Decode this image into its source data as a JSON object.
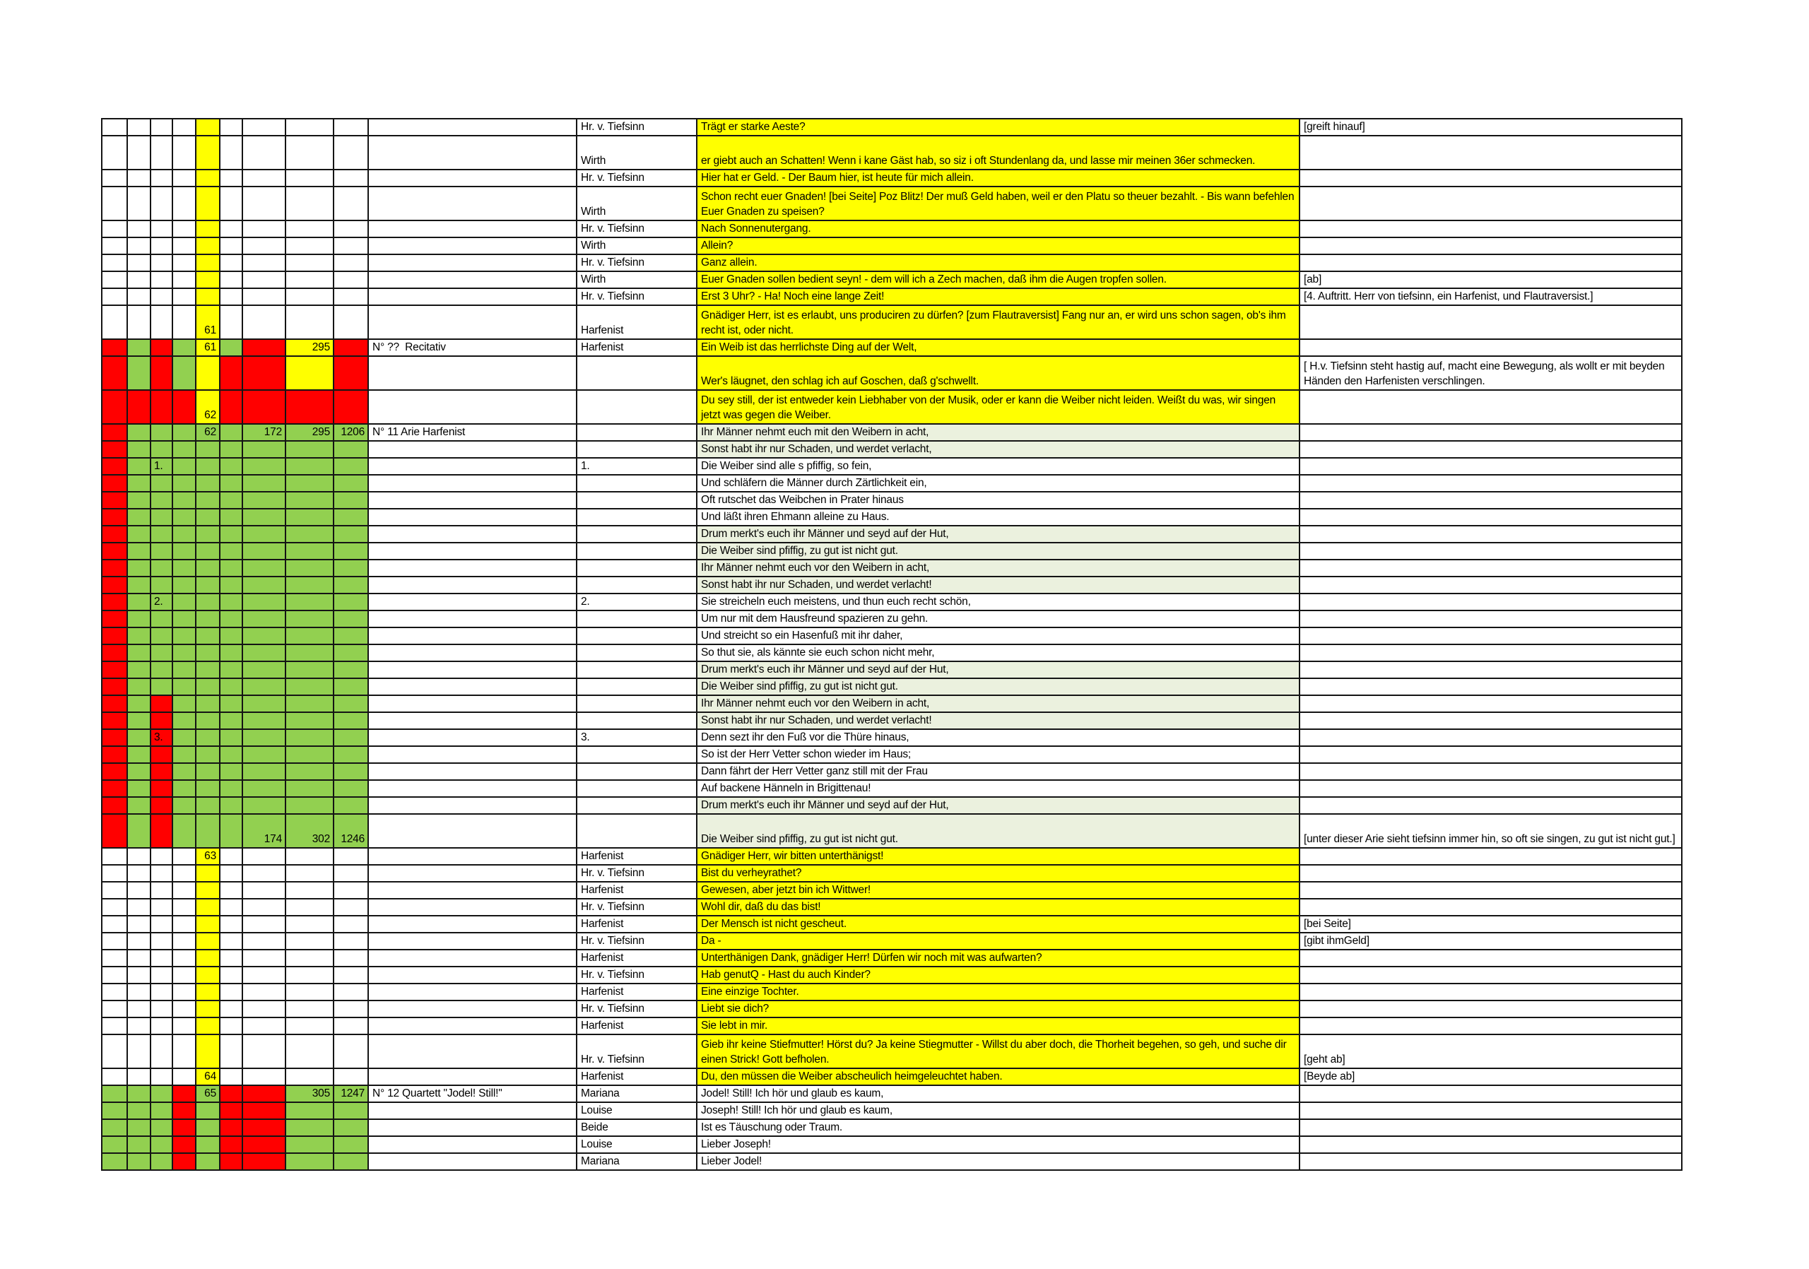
{
  "palette": {
    "yellow": "#ffff00",
    "red": "#ff0000",
    "green": "#92d050",
    "pale_green": "#ebf1de",
    "white": "#ffffff",
    "grid_line": "#141414"
  },
  "table": {
    "rows": [
      {
        "h": 1,
        "left": "wwwwywwww",
        "marks": {},
        "title": "",
        "speaker": "Hr. v. Tiefsinn",
        "text": "Trägt er starke Aeste?",
        "bg": "y",
        "stage": "[greift hinauf]"
      },
      {
        "h": 2,
        "left": "wwwwywwww",
        "marks": {},
        "title": "",
        "speaker": "Wirth",
        "text": "er giebt auch an Schatten! Wenn i kane Gäst hab, so siz i oft Stundenlang da, und lasse mir meinen 36er schmecken.",
        "bg": "y",
        "stage": ""
      },
      {
        "h": 1,
        "left": "wwwwywwww",
        "marks": {},
        "title": "",
        "speaker": "Hr. v. Tiefsinn",
        "text": "Hier hat er Geld. - Der Baum hier, ist heute für mich allein.",
        "bg": "y",
        "stage": ""
      },
      {
        "h": 2,
        "left": "wwwwywwww",
        "marks": {},
        "title": "",
        "speaker": "Wirth",
        "text": "Schon recht euer Gnaden! [bei Seite] Poz Blitz! Der muß Geld haben, weil er den Platu so theuer bezahlt. - Bis wann befehlen Euer Gnaden zu speisen?",
        "bg": "y",
        "stage": ""
      },
      {
        "h": 1,
        "left": "wwwwywwww",
        "marks": {},
        "title": "",
        "speaker": "Hr. v. Tiefsinn",
        "text": "Nach Sonnenutergang.",
        "bg": "y",
        "stage": ""
      },
      {
        "h": 1,
        "left": "wwwwywwww",
        "marks": {},
        "title": "",
        "speaker": "Wirth",
        "text": "Allein?",
        "bg": "y",
        "stage": ""
      },
      {
        "h": 1,
        "left": "wwwwywwww",
        "marks": {},
        "title": "",
        "speaker": "Hr. v. Tiefsinn",
        "text": "Ganz allein.",
        "bg": "y",
        "stage": ""
      },
      {
        "h": 1,
        "left": "wwwwywwww",
        "marks": {},
        "title": "",
        "speaker": "Wirth",
        "text": "Euer Gnaden sollen bedient seyn! - dem will ich a Zech machen, daß ihm die Augen tropfen sollen.",
        "bg": "y",
        "stage": "[ab]"
      },
      {
        "h": 1,
        "left": "wwwwywwww",
        "marks": {},
        "title": "",
        "speaker": "Hr. v. Tiefsinn",
        "text": "Erst 3 Uhr? - Ha! Noch eine lange Zeit!",
        "bg": "y",
        "stage": "[4. Auftritt. Herr von tiefsinn, ein Harfenist, und Flautraversist.]"
      },
      {
        "h": 2,
        "left": "wwwwywwww",
        "marks": {
          "4": "61"
        },
        "title": "",
        "speaker": "Harfenist",
        "text": "Gnädiger Herr, ist es erlaubt, uns produciren zu dürfen? [zum Flautraversist] Fang nur an, er wird uns schon sagen, ob's ihm recht ist, oder nicht.",
        "bg": "y",
        "stage": ""
      },
      {
        "h": 1,
        "left": "rgrgygryr",
        "marks": {
          "4": "61",
          "7": "295"
        },
        "title": "N° ??  Recitativ",
        "speaker": "Harfenist",
        "text": "Ein Weib ist das herrlichste Ding auf der Welt,",
        "bg": "y",
        "stage": ""
      },
      {
        "h": 2,
        "left": "rgrgyrryr",
        "marks": {},
        "title": "",
        "speaker": "",
        "text": "Wer's läugnet, den schlag ich auf Goschen, daß g'schwellt.",
        "bg": "y",
        "stage": "[ H.v. Tiefsinn steht hastig auf, macht eine Bewegung, als wollt er mit beyden Händen den Harfenisten verschlingen."
      },
      {
        "h": 2,
        "left": "rrrryrrrr",
        "marks": {
          "4": "62"
        },
        "title": "",
        "speaker": "",
        "text": "Du sey still, der ist entweder kein Liebhaber von der Musik, oder er kann die Weiber nicht leiden. Weißt du was, wir singen jetzt was gegen die Weiber.",
        "bg": "y",
        "stage": ""
      },
      {
        "h": 1,
        "left": "rgggggggg",
        "marks": {
          "4": "62",
          "6": "172",
          "7": "295",
          "8": "1206"
        },
        "title": "N° 11 Arie Harfenist",
        "speaker": "",
        "text": "Ihr Männer nehmt euch mit den Weibern in acht,",
        "bg": "p",
        "stage": ""
      },
      {
        "h": 1,
        "left": "rgggggggg",
        "marks": {},
        "title": "",
        "speaker": "",
        "text": "Sonst habt ihr nur Schaden, und werdet verlacht,",
        "bg": "p",
        "stage": ""
      },
      {
        "h": 1,
        "left": "rgggggggg",
        "marks": {
          "2": "1."
        },
        "title": "",
        "speaker": "1.",
        "text": "Die Weiber sind alle s pfiffig, so fein,",
        "bg": "w",
        "stage": ""
      },
      {
        "h": 1,
        "left": "rgggggggg",
        "marks": {},
        "title": "",
        "speaker": "",
        "text": "Und schläfern die Männer durch Zärtlichkeit ein,",
        "bg": "w",
        "stage": ""
      },
      {
        "h": 1,
        "left": "rgggggggg",
        "marks": {},
        "title": "",
        "speaker": "",
        "text": "Oft rutschet das Weibchen in Prater hinaus",
        "bg": "w",
        "stage": ""
      },
      {
        "h": 1,
        "left": "rgggggggg",
        "marks": {},
        "title": "",
        "speaker": "",
        "text": "Und läßt ihren Ehmann alleine zu Haus.",
        "bg": "w",
        "stage": ""
      },
      {
        "h": 1,
        "left": "rgggggggg",
        "marks": {},
        "title": "",
        "speaker": "",
        "text": "Drum merkt's euch ihr Männer und seyd auf der Hut,",
        "bg": "p",
        "stage": ""
      },
      {
        "h": 1,
        "left": "rgggggggg",
        "marks": {},
        "title": "",
        "speaker": "",
        "text": "Die Weiber sind pfiffig, zu gut ist nicht gut.",
        "bg": "p",
        "stage": ""
      },
      {
        "h": 1,
        "left": "rgggggggg",
        "marks": {},
        "title": "",
        "speaker": "",
        "text": "Ihr Männer nehmt euch vor den Weibern in acht,",
        "bg": "p",
        "stage": ""
      },
      {
        "h": 1,
        "left": "rgggggggg",
        "marks": {},
        "title": "",
        "speaker": "",
        "text": "Sonst habt ihr nur Schaden, und werdet verlacht!",
        "bg": "p",
        "stage": ""
      },
      {
        "h": 1,
        "left": "rgggggggg",
        "marks": {
          "2": "2."
        },
        "title": "",
        "speaker": "2.",
        "text": "Sie streicheln euch meistens, und thun euch recht schön,",
        "bg": "w",
        "stage": ""
      },
      {
        "h": 1,
        "left": "rgggggggg",
        "marks": {},
        "title": "",
        "speaker": "",
        "text": "Um nur mit dem Hausfreund spazieren zu gehn.",
        "bg": "w",
        "stage": ""
      },
      {
        "h": 1,
        "left": "rgggggggg",
        "marks": {},
        "title": "",
        "speaker": "",
        "text": "Und streicht so ein Hasenfuß mit ihr daher,",
        "bg": "w",
        "stage": ""
      },
      {
        "h": 1,
        "left": "rgggggggg",
        "marks": {},
        "title": "",
        "speaker": "",
        "text": "So thut sie, als kännte sie euch schon nicht mehr,",
        "bg": "w",
        "stage": ""
      },
      {
        "h": 1,
        "left": "rgggggggg",
        "marks": {},
        "title": "",
        "speaker": "",
        "text": "Drum merkt's euch ihr Männer und seyd auf der Hut,",
        "bg": "p",
        "stage": ""
      },
      {
        "h": 1,
        "left": "rgggggggg",
        "marks": {},
        "title": "",
        "speaker": "",
        "text": "Die Weiber sind pfiffig, zu gut ist nicht gut.",
        "bg": "p",
        "stage": ""
      },
      {
        "h": 1,
        "left": "rgrgggggg",
        "marks": {},
        "title": "",
        "speaker": "",
        "text": "Ihr Männer nehmt euch vor den Weibern in acht,",
        "bg": "p",
        "stage": ""
      },
      {
        "h": 1,
        "left": "rgrgggggg",
        "marks": {},
        "title": "",
        "speaker": "",
        "text": "Sonst habt ihr nur Schaden, und werdet verlacht!",
        "bg": "p",
        "stage": ""
      },
      {
        "h": 1,
        "left": "rgrgggggg",
        "marks": {
          "2": "3."
        },
        "title": "",
        "speaker": "3.",
        "text": "Denn sezt ihr den Fuß vor die Thüre hinaus,",
        "bg": "w",
        "stage": ""
      },
      {
        "h": 1,
        "left": "rgrgggggg",
        "marks": {},
        "title": "",
        "speaker": "",
        "text": "So ist der Herr Vetter schon wieder im Haus;",
        "bg": "w",
        "stage": ""
      },
      {
        "h": 1,
        "left": "rgrgggggg",
        "marks": {},
        "title": "",
        "speaker": "",
        "text": "Dann fährt der Herr Vetter ganz still mit der Frau",
        "bg": "w",
        "stage": ""
      },
      {
        "h": 1,
        "left": "rgrgggggg",
        "marks": {},
        "title": "",
        "speaker": "",
        "text": "Auf backene Hänneln in Brigittenau!",
        "bg": "w",
        "stage": ""
      },
      {
        "h": 1,
        "left": "rgrgggggg",
        "marks": {},
        "title": "",
        "speaker": "",
        "text": "Drum merkt's euch ihr Männer und seyd auf der Hut,",
        "bg": "p",
        "stage": ""
      },
      {
        "h": 2,
        "left": "rgrgggggg",
        "marks": {
          "6": "174",
          "7": "302",
          "8": "1246"
        },
        "title": "",
        "speaker": "",
        "text": "Die Weiber sind pfiffig, zu gut ist nicht gut.",
        "bg": "p",
        "stage": "[unter dieser Arie sieht tiefsinn immer hin, so oft sie singen, zu gut ist nicht gut.]"
      },
      {
        "h": 1,
        "left": "wwwwywwww",
        "marks": {
          "4": "63"
        },
        "title": "",
        "speaker": "Harfenist",
        "text": "Gnädiger Herr, wir bitten unterthänigst!",
        "bg": "y",
        "stage": ""
      },
      {
        "h": 1,
        "left": "wwwwywwww",
        "marks": {},
        "title": "",
        "speaker": "Hr. v. Tiefsinn",
        "text": "Bist du verheyrathet?",
        "bg": "y",
        "stage": ""
      },
      {
        "h": 1,
        "left": "wwwwywwww",
        "marks": {},
        "title": "",
        "speaker": "Harfenist",
        "text": "Gewesen, aber jetzt bin ich Wittwer!",
        "bg": "y",
        "stage": ""
      },
      {
        "h": 1,
        "left": "wwwwywwww",
        "marks": {},
        "title": "",
        "speaker": "Hr. v. Tiefsinn",
        "text": "Wohl dir, daß du das bist!",
        "bg": "y",
        "stage": ""
      },
      {
        "h": 1,
        "left": "wwwwywwww",
        "marks": {},
        "title": "",
        "speaker": "Harfenist",
        "text": "Der Mensch ist nicht gescheut.",
        "bg": "y",
        "stage": "[bei Seite]"
      },
      {
        "h": 1,
        "left": "wwwwywwww",
        "marks": {},
        "title": "",
        "speaker": "Hr. v. Tiefsinn",
        "text": "Da -",
        "bg": "y",
        "stage": "[gibt ihmGeld]"
      },
      {
        "h": 1,
        "left": "wwwwywwww",
        "marks": {},
        "title": "",
        "speaker": "Harfenist",
        "text": "Unterthänigen Dank, gnädiger Herr! Dürfen wir noch mit was aufwarten?",
        "bg": "y",
        "stage": ""
      },
      {
        "h": 1,
        "left": "wwwwywwww",
        "marks": {},
        "title": "",
        "speaker": "Hr. v. Tiefsinn",
        "text": "Hab genutQ - Hast du auch Kinder?",
        "bg": "y",
        "stage": ""
      },
      {
        "h": 1,
        "left": "wwwwywwww",
        "marks": {},
        "title": "",
        "speaker": "Harfenist",
        "text": "Eine einzige Tochter.",
        "bg": "y",
        "stage": ""
      },
      {
        "h": 1,
        "left": "wwwwywwww",
        "marks": {},
        "title": "",
        "speaker": "Hr. v. Tiefsinn",
        "text": "Liebt sie dich?",
        "bg": "y",
        "stage": ""
      },
      {
        "h": 1,
        "left": "wwwwywwww",
        "marks": {},
        "title": "",
        "speaker": "Harfenist",
        "text": "Sie lebt in mir.",
        "bg": "y",
        "stage": ""
      },
      {
        "h": 2,
        "left": "wwwwywwww",
        "marks": {},
        "title": "",
        "speaker": "Hr. v. Tiefsinn",
        "text": "Gieb ihr keine Stiefmutter! Hörst du? Ja keine Stiegmutter - Willst du aber doch, die Thorheit begehen, so geh, und suche dir einen Strick! Gott befholen.",
        "bg": "y",
        "stage": "[geht ab]"
      },
      {
        "h": 1,
        "left": "wwwwywwww",
        "marks": {
          "4": "64"
        },
        "title": "",
        "speaker": "Harfenist",
        "text": "Du, den müssen die Weiber abscheulich heimgeleuchtet haben.",
        "bg": "y",
        "stage": "[Beyde ab]"
      },
      {
        "h": 1,
        "left": "gggrgrrgg",
        "marks": {
          "4": "65",
          "7": "305",
          "8": "1247"
        },
        "title": "N° 12 Quartett \"Jodel! Still!\"",
        "speaker": "Mariana",
        "text": "Jodel! Still! Ich hör und glaub es kaum,",
        "bg": "w",
        "stage": ""
      },
      {
        "h": 1,
        "left": "gggrgrrgg",
        "marks": {},
        "title": "",
        "speaker": "Louise",
        "text": "Joseph! Still! Ich hör und glaub es kaum,",
        "bg": "w",
        "stage": ""
      },
      {
        "h": 1,
        "left": "gggrgrrgg",
        "marks": {},
        "title": "",
        "speaker": "Beide",
        "text": "Ist es Täuschung oder Traum.",
        "bg": "w",
        "stage": ""
      },
      {
        "h": 1,
        "left": "gggrgrrgg",
        "marks": {},
        "title": "",
        "speaker": "Louise",
        "text": "Lieber Joseph!",
        "bg": "w",
        "stage": ""
      },
      {
        "h": 1,
        "left": "gggrgrrgg",
        "marks": {},
        "title": "",
        "speaker": "Mariana",
        "text": "Lieber Jodel!",
        "bg": "w",
        "stage": ""
      }
    ]
  }
}
